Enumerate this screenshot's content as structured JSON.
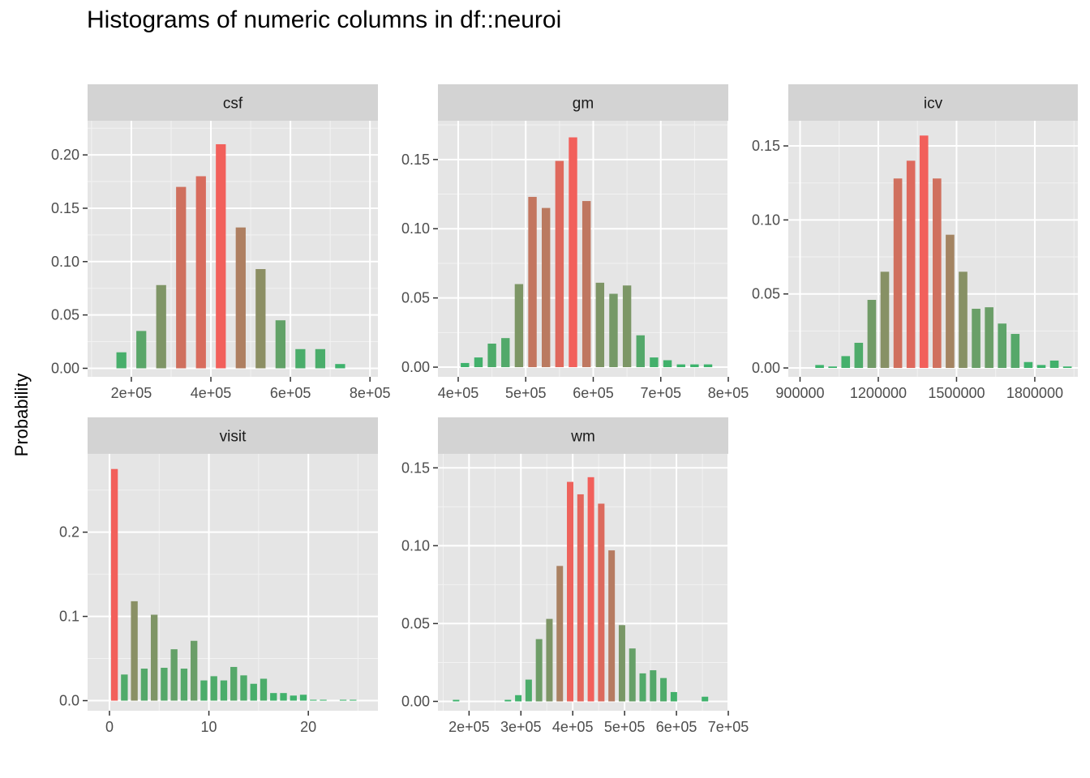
{
  "title": "Histograms of numeric columns in df::neuroi",
  "ylabel": "Probability",
  "colors": {
    "panel_bg": "#e5e5e5",
    "strip_bg": "#d3d3d3",
    "grid_major": "#ffffff",
    "grid_minor": "#f2f2f2",
    "high": "#f2605b",
    "low": "#3bb46c"
  },
  "chart_data": [
    {
      "type": "bar",
      "panel": "csf",
      "x_ticks": [
        200000,
        400000,
        600000,
        800000
      ],
      "x_tick_labels": [
        "2e+05",
        "4e+05",
        "6e+05",
        "8e+05"
      ],
      "x_range": [
        90000,
        820000
      ],
      "y_ticks": [
        0,
        0.05,
        0.1,
        0.15,
        0.2
      ],
      "y_tick_labels": [
        "0.00",
        "0.05",
        "0.10",
        "0.15",
        "0.20"
      ],
      "ylim": [
        -0.008,
        0.232
      ],
      "bar_width": 25000,
      "x": [
        175000,
        225000,
        275000,
        325000,
        375000,
        425000,
        475000,
        525000,
        575000,
        625000,
        675000,
        725000
      ],
      "values": [
        0.015,
        0.035,
        0.078,
        0.17,
        0.18,
        0.21,
        0.132,
        0.093,
        0.045,
        0.018,
        0.018,
        0.004
      ]
    },
    {
      "type": "bar",
      "panel": "gm",
      "x_ticks": [
        400000,
        500000,
        600000,
        700000,
        800000
      ],
      "x_tick_labels": [
        "4e+05",
        "5e+05",
        "6e+05",
        "7e+05",
        "8e+05"
      ],
      "x_range": [
        370000,
        800000
      ],
      "y_ticks": [
        0,
        0.05,
        0.1,
        0.15
      ],
      "y_tick_labels": [
        "0.00",
        "0.05",
        "0.10",
        "0.15"
      ],
      "ylim": [
        -0.007,
        0.178
      ],
      "bar_width": 12500,
      "x": [
        410000,
        430000,
        450000,
        470000,
        490000,
        510000,
        530000,
        550000,
        570000,
        590000,
        610000,
        630000,
        650000,
        670000,
        690000,
        710000,
        730000,
        750000,
        770000
      ],
      "values": [
        0.003,
        0.007,
        0.017,
        0.021,
        0.06,
        0.123,
        0.115,
        0.149,
        0.166,
        0.12,
        0.061,
        0.053,
        0.059,
        0.023,
        0.007,
        0.005,
        0.002,
        0.002,
        0.002
      ]
    },
    {
      "type": "bar",
      "panel": "icv",
      "x_ticks": [
        900000,
        1200000,
        1500000,
        1800000
      ],
      "x_tick_labels": [
        "900000",
        "1200000",
        "1500000",
        "1800000"
      ],
      "x_range": [
        855000,
        1965000
      ],
      "y_ticks": [
        0,
        0.05,
        0.1,
        0.15
      ],
      "y_tick_labels": [
        "0.00",
        "0.05",
        "0.10",
        "0.15"
      ],
      "ylim": [
        -0.006,
        0.167
      ],
      "bar_width": 33000,
      "x": [
        975000,
        1025000,
        1075000,
        1125000,
        1175000,
        1225000,
        1275000,
        1325000,
        1375000,
        1425000,
        1475000,
        1525000,
        1575000,
        1625000,
        1675000,
        1725000,
        1775000,
        1825000,
        1875000,
        1925000
      ],
      "values": [
        0.002,
        0.001,
        0.008,
        0.017,
        0.046,
        0.065,
        0.128,
        0.14,
        0.157,
        0.128,
        0.09,
        0.065,
        0.04,
        0.041,
        0.03,
        0.023,
        0.004,
        0.002,
        0.005,
        0.001
      ]
    },
    {
      "type": "bar",
      "panel": "visit",
      "x_ticks": [
        0,
        10,
        20
      ],
      "x_tick_labels": [
        "0",
        "10",
        "20"
      ],
      "x_range": [
        -2.2,
        27.0
      ],
      "y_ticks": [
        0,
        0.1,
        0.2
      ],
      "y_tick_labels": [
        "0.0",
        "0.1",
        "0.2"
      ],
      "ylim": [
        -0.012,
        0.293
      ],
      "bar_width": 0.68,
      "x": [
        0.5,
        1.5,
        2.5,
        3.5,
        4.5,
        5.5,
        6.5,
        7.5,
        8.5,
        9.5,
        10.5,
        11.5,
        12.5,
        13.5,
        14.5,
        15.5,
        16.5,
        17.5,
        18.5,
        19.5,
        20.5,
        21.5,
        22.5,
        23.5,
        24.5
      ],
      "values": [
        0.275,
        0.031,
        0.118,
        0.038,
        0.102,
        0.039,
        0.061,
        0.038,
        0.071,
        0.024,
        0.029,
        0.024,
        0.04,
        0.03,
        0.02,
        0.026,
        0.009,
        0.009,
        0.006,
        0.007,
        0.001,
        0.001,
        0.0,
        0.001,
        0.001
      ]
    },
    {
      "type": "bar",
      "panel": "wm",
      "x_ticks": [
        200000,
        300000,
        400000,
        500000,
        600000,
        700000
      ],
      "x_tick_labels": [
        "2e+05",
        "3e+05",
        "4e+05",
        "5e+05",
        "6e+05",
        "7e+05"
      ],
      "x_range": [
        140000,
        700000
      ],
      "y_ticks": [
        0,
        0.05,
        0.1,
        0.15
      ],
      "y_tick_labels": [
        "0.00",
        "0.05",
        "0.10",
        "0.15"
      ],
      "ylim": [
        -0.006,
        0.159
      ],
      "bar_width": 12500,
      "x": [
        175000,
        275000,
        295000,
        315000,
        335000,
        355000,
        375000,
        395000,
        415000,
        435000,
        455000,
        475000,
        495000,
        515000,
        535000,
        555000,
        575000,
        595000,
        655000
      ],
      "values": [
        0.001,
        0.001,
        0.004,
        0.014,
        0.04,
        0.053,
        0.087,
        0.141,
        0.133,
        0.144,
        0.127,
        0.097,
        0.049,
        0.034,
        0.018,
        0.02,
        0.015,
        0.006,
        0.003
      ]
    }
  ]
}
